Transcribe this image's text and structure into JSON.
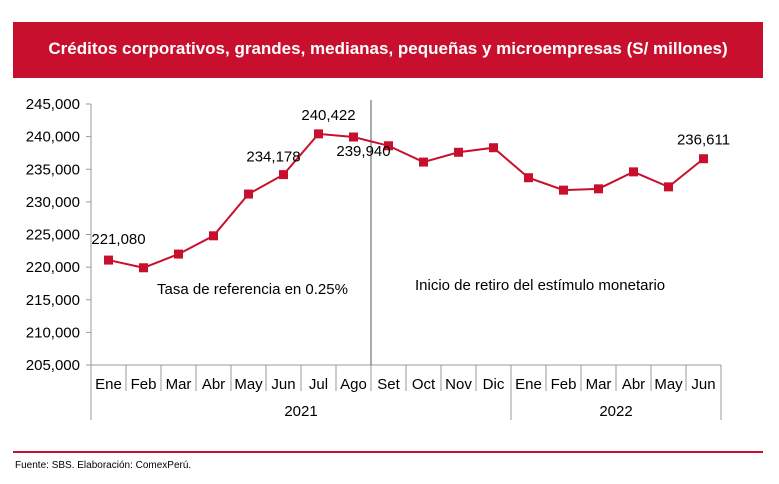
{
  "chart_data": {
    "type": "line",
    "title": "Créditos corporativos, grandes, medianas, pequeñas y microempresas (S/ millones)",
    "categories": [
      "Ene",
      "Feb",
      "Mar",
      "Abr",
      "May",
      "Jun",
      "Jul",
      "Ago",
      "Set",
      "Oct",
      "Nov",
      "Dic",
      "Ene",
      "Feb",
      "Mar",
      "Abr",
      "May",
      "Jun"
    ],
    "years": [
      {
        "label": "2021",
        "span": 12
      },
      {
        "label": "2022",
        "span": 6
      }
    ],
    "series": [
      {
        "name": "Créditos",
        "color": "#c8102e",
        "values": [
          221080,
          219900,
          222000,
          224800,
          231200,
          234178,
          240422,
          239940,
          238600,
          236100,
          237600,
          238300,
          233700,
          231800,
          232000,
          234600,
          232300,
          236611
        ]
      }
    ],
    "data_labels": [
      {
        "index": 0,
        "text": "221,080"
      },
      {
        "index": 5,
        "text": "234,178"
      },
      {
        "index": 6,
        "text": "240,422"
      },
      {
        "index": 7,
        "text": "239,940"
      },
      {
        "index": 17,
        "text": "236,611"
      }
    ],
    "ylim": [
      205000,
      245000
    ],
    "yticks": [
      "205,000",
      "210,000",
      "215,000",
      "220,000",
      "225,000",
      "230,000",
      "235,000",
      "240,000",
      "245,000"
    ],
    "annotations": [
      "Tasa de referencia en 0.25%",
      "Inicio de retiro del estímulo monetario"
    ],
    "divider_after_index": 7,
    "grid": false,
    "xlabel": "",
    "ylabel": ""
  },
  "footer": {
    "source": "Fuente: SBS. Elaboración: ComexPerú."
  }
}
